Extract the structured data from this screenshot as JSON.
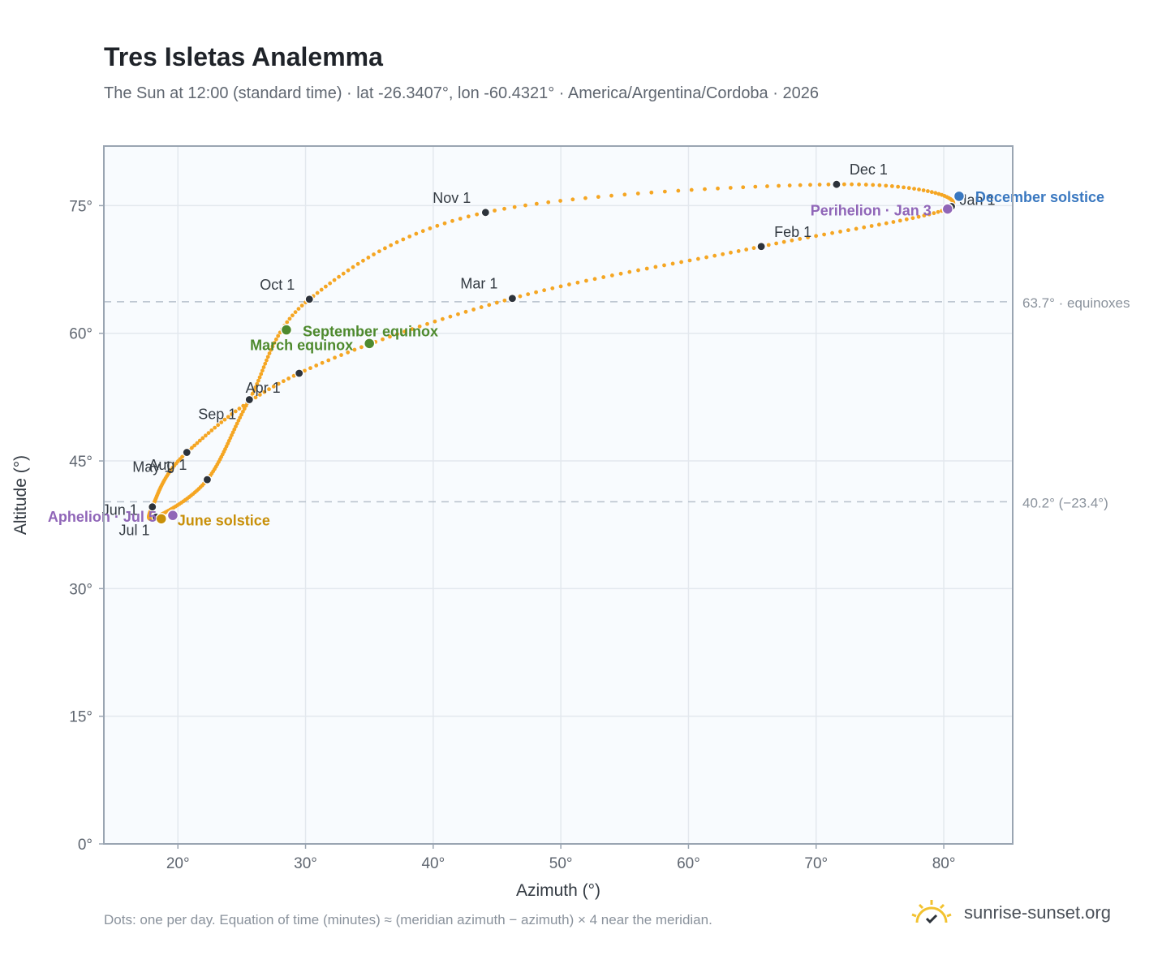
{
  "header": {
    "title": "Tres Isletas Analemma",
    "subtitle": "The Sun at 12:00 (standard time) · lat -26.3407°, lon -60.4321° · America/Argentina/Cordoba · 2026"
  },
  "footer": {
    "note": "Dots: one per day. Equation of time (minutes) ≈ (meridian azimuth − azimuth) × 4 near the meridian.",
    "brand": "sunrise-sunset.org"
  },
  "colors": {
    "curve": "#f5a623",
    "month_marker": "#2d333b",
    "equinox": "#4e8a2e",
    "june_solstice": "#c8900a",
    "december_solstice": "#3a78c0",
    "apsis": "#9066b8",
    "plot_bg": "#f8fbfe",
    "grid": "#e3e8ee",
    "frame": "#9aa5b2",
    "ref_line": "#b6c0cb"
  },
  "chart_data": {
    "type": "scatter",
    "xlabel": "Azimuth (°)",
    "ylabel": "Altitude (°)",
    "xlim": [
      14.2,
      85.4
    ],
    "ylim": [
      0,
      82
    ],
    "x_ticks": [
      20,
      30,
      40,
      50,
      60,
      70,
      80
    ],
    "x_tick_labels": [
      "20°",
      "30°",
      "40°",
      "50°",
      "60°",
      "70°",
      "80°"
    ],
    "y_ticks": [
      0,
      15,
      30,
      45,
      60,
      75
    ],
    "y_tick_labels": [
      "0°",
      "15°",
      "30°",
      "45°",
      "60°",
      "75°"
    ],
    "grid": true,
    "reference_lines": [
      {
        "altitude": 63.7,
        "label": "63.7° · equinoxes"
      },
      {
        "altitude": 40.2,
        "label": "40.2° (−23.4°)"
      }
    ],
    "month_markers": [
      {
        "label": "Jan 1",
        "azimuth": 80.6,
        "altitude": 74.9
      },
      {
        "label": "Feb 1",
        "azimuth": 65.7,
        "altitude": 70.2
      },
      {
        "label": "Mar 1",
        "azimuth": 46.2,
        "altitude": 64.1
      },
      {
        "label": "Apr 1",
        "azimuth": 29.5,
        "altitude": 55.3
      },
      {
        "label": "May 1",
        "azimuth": 20.7,
        "altitude": 46.0
      },
      {
        "label": "Jun 1",
        "azimuth": 18.0,
        "altitude": 39.6
      },
      {
        "label": "Jul 1",
        "azimuth": 18.3,
        "altitude": 38.4
      },
      {
        "label": "Aug 1",
        "azimuth": 22.3,
        "altitude": 42.8
      },
      {
        "label": "Sep 1",
        "azimuth": 25.6,
        "altitude": 52.2
      },
      {
        "label": "Oct 1",
        "azimuth": 30.3,
        "altitude": 64.0
      },
      {
        "label": "Nov 1",
        "azimuth": 44.1,
        "altitude": 74.2
      },
      {
        "label": "Dec 1",
        "azimuth": 71.6,
        "altitude": 77.5
      }
    ],
    "events": [
      {
        "label": "March equinox",
        "azimuth": 35.0,
        "altitude": 58.8,
        "color_key": "equinox"
      },
      {
        "label": "September equinox",
        "azimuth": 28.5,
        "altitude": 60.4,
        "color_key": "equinox"
      },
      {
        "label": "June solstice",
        "azimuth": 18.7,
        "altitude": 38.2,
        "color_key": "june_solstice"
      },
      {
        "label": "December solstice",
        "azimuth": 81.2,
        "altitude": 76.1,
        "color_key": "december_solstice"
      },
      {
        "label": "Perihelion · Jan 3",
        "azimuth": 80.3,
        "altitude": 74.6,
        "color_key": "apsis"
      },
      {
        "label": "Aphelion · Jul 5",
        "azimuth": 19.6,
        "altitude": 38.6,
        "color_key": "apsis"
      }
    ]
  }
}
